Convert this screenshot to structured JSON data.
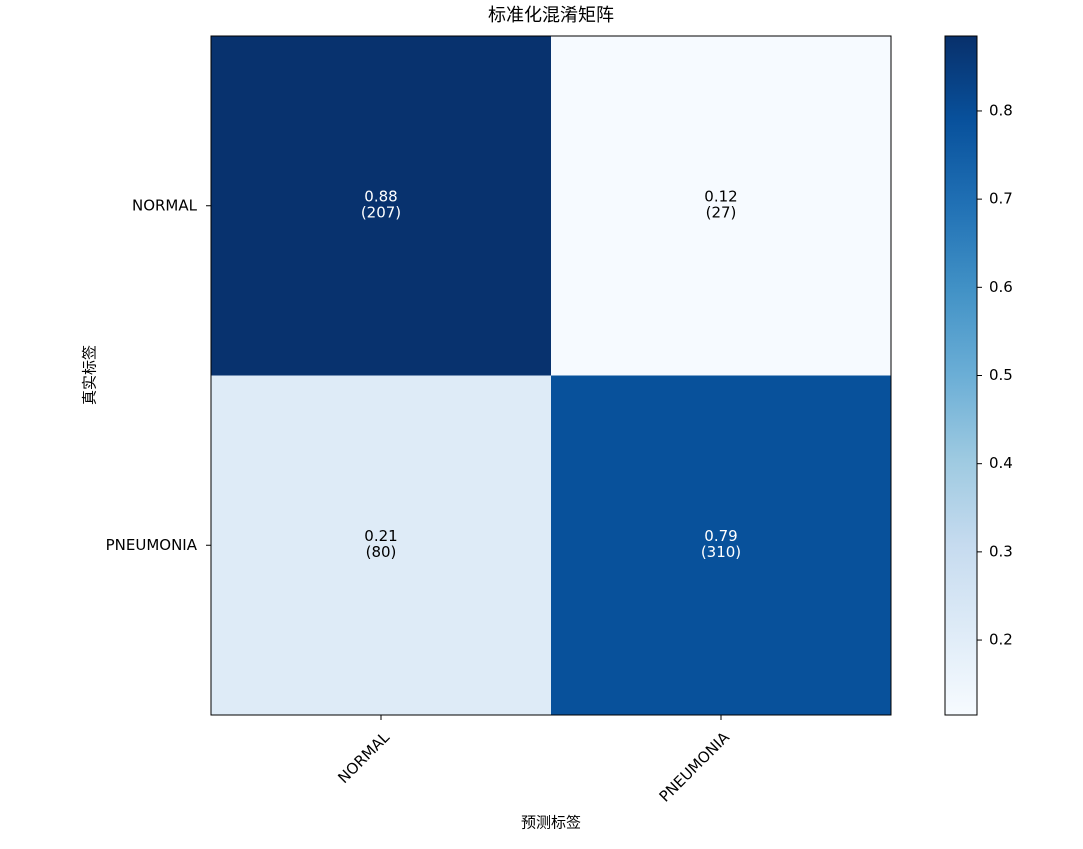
{
  "chart_data": {
    "type": "heatmap",
    "title": "标准化混淆矩阵",
    "x_label": "预测标签",
    "y_label": "真实标签",
    "x_categories": [
      "NORMAL",
      "PNEUMONIA"
    ],
    "y_categories": [
      "NORMAL",
      "PNEUMONIA"
    ],
    "values": [
      [
        0.88,
        0.12
      ],
      [
        0.21,
        0.79
      ]
    ],
    "count_labels": [
      [
        "(207)",
        "(27)"
      ],
      [
        "(80)",
        "(310)"
      ]
    ],
    "colormap": [
      "#f7fbff",
      "#deebf7",
      "#c6dbef",
      "#9ecae1",
      "#6baed6",
      "#4292c6",
      "#2171b5",
      "#08519c",
      "#08306b"
    ],
    "colorbar_lim": [
      0.115,
      0.885
    ],
    "colorbar_ticks": [
      0.2,
      0.3,
      0.4,
      0.5,
      0.6,
      0.7,
      0.8
    ]
  }
}
